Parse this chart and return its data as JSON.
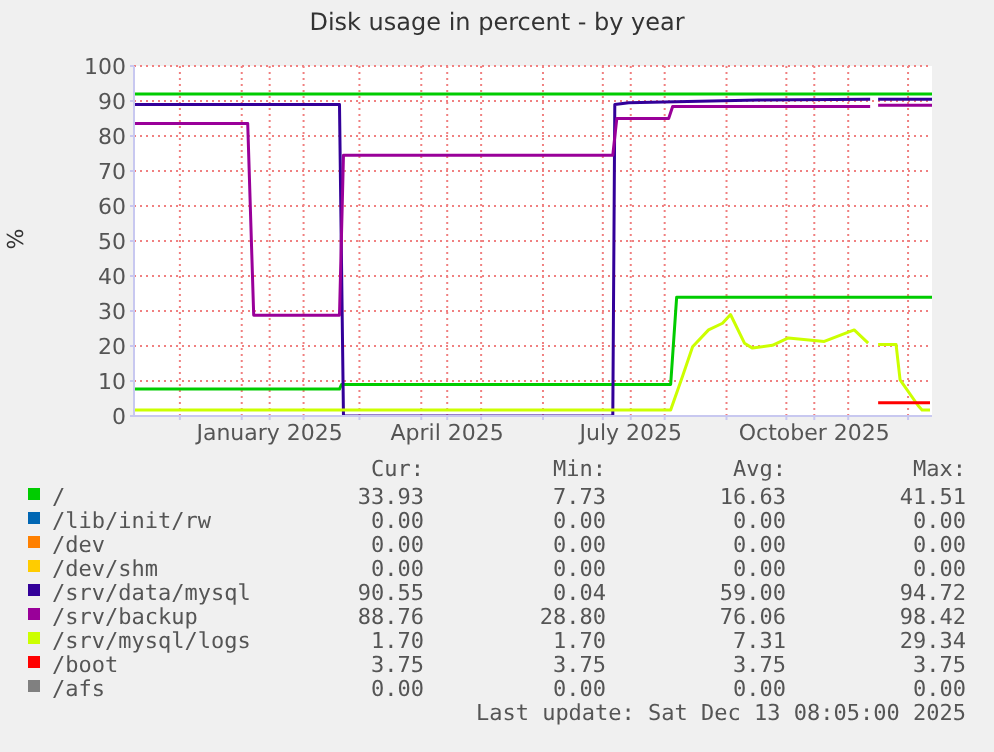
{
  "chart_data": {
    "type": "line",
    "title": "Disk usage in percent - by year",
    "ylabel": "%",
    "xlim": [
      "2024-11-08",
      "2025-12-13"
    ],
    "xticks": [
      {
        "value": "2024-12-01",
        "label": null
      },
      {
        "value": "2025-01-01",
        "label": null
      },
      {
        "value": "2025-01-15",
        "label": "January 2025"
      },
      {
        "value": "2025-02-01",
        "label": null
      },
      {
        "value": "2025-03-01",
        "label": null
      },
      {
        "value": "2025-04-01",
        "label": null
      },
      {
        "value": "2025-04-14",
        "label": "April 2025"
      },
      {
        "value": "2025-05-01",
        "label": null
      },
      {
        "value": "2025-06-01",
        "label": null
      },
      {
        "value": "2025-07-01",
        "label": null
      },
      {
        "value": "2025-07-15",
        "label": "July 2025"
      },
      {
        "value": "2025-08-01",
        "label": null
      },
      {
        "value": "2025-09-01",
        "label": null
      },
      {
        "value": "2025-10-01",
        "label": null
      },
      {
        "value": "2025-10-15",
        "label": "October 2025"
      },
      {
        "value": "2025-11-01",
        "label": null
      },
      {
        "value": "2025-12-01",
        "label": null
      }
    ],
    "ylim": [
      0,
      100
    ],
    "yticks": [
      0,
      10,
      20,
      30,
      40,
      50,
      60,
      70,
      80,
      90,
      100
    ],
    "grid": true,
    "legend": "bottom",
    "ref_lines": [
      {
        "axis": "y",
        "value": 92,
        "color": "#00cc00"
      }
    ],
    "series": [
      {
        "name": "/",
        "color": "#00cc00",
        "x": [
          "2024-11-08",
          "2025-02-19",
          "2025-02-20",
          "2025-08-04",
          "2025-08-07",
          "2025-12-13"
        ],
        "values": [
          7.7,
          7.7,
          9,
          9,
          33.9,
          33.9
        ]
      },
      {
        "name": "/lib/init/rw",
        "color": "#0066b3"
      },
      {
        "name": "/dev",
        "color": "#ff8000"
      },
      {
        "name": "/dev/shm",
        "color": "#ffcc00"
      },
      {
        "name": "/srv/data/mysql",
        "color": "#330099",
        "x": [
          "2024-11-08",
          "2025-02-19",
          "2025-02-21",
          "2025-07-06",
          "2025-07-07",
          "2025-07-14",
          "2025-09-17",
          "2025-11-12",
          "2025-11-14",
          "2025-11-16",
          "2025-12-13"
        ],
        "values": [
          89,
          89,
          0,
          0,
          89,
          89.5,
          90.3,
          90.5,
          null,
          90.5,
          90.5
        ]
      },
      {
        "name": "/srv/backup",
        "color": "#990099",
        "x": [
          "2024-11-08",
          "2025-01-04",
          "2025-01-07",
          "2025-02-19",
          "2025-02-21",
          "2025-07-06",
          "2025-07-08",
          "2025-08-03",
          "2025-08-05",
          "2025-11-12",
          "2025-11-14",
          "2025-11-16",
          "2025-12-13"
        ],
        "values": [
          83.6,
          83.6,
          28.8,
          28.8,
          74.5,
          74.5,
          85,
          85,
          88.4,
          88.4,
          null,
          88.8,
          88.8
        ]
      },
      {
        "name": "/srv/mysql/logs",
        "color": "#ccff00",
        "x": [
          "2024-11-08",
          "2025-08-04",
          "2025-08-10",
          "2025-08-15",
          "2025-08-23",
          "2025-08-30",
          "2025-09-03",
          "2025-09-10",
          "2025-09-14",
          "2025-09-24",
          "2025-10-02",
          "2025-10-20",
          "2025-11-04",
          "2025-11-11",
          "2025-11-13",
          "2025-11-16",
          "2025-11-25",
          "2025-11-27",
          "2025-12-06",
          "2025-12-08",
          "2025-12-12"
        ],
        "values": [
          1.7,
          1.7,
          11.4,
          19.8,
          24.6,
          26.5,
          29,
          20.8,
          19.4,
          20.2,
          22.3,
          21.3,
          24.6,
          20.8,
          null,
          20.4,
          20.4,
          10.3,
          3,
          1.7,
          1.7
        ]
      },
      {
        "name": "/boot",
        "color": "#ff0000",
        "x": [
          "2025-11-16",
          "2025-12-12"
        ],
        "values": [
          3.8,
          3.8
        ]
      },
      {
        "name": "/afs",
        "color": "#808080"
      }
    ],
    "annotations": [
      "Cur:",
      "Min:",
      "Avg:",
      "Max:",
      "33.93",
      "7.73",
      "16.63",
      "41.51",
      "0.00",
      "0.00",
      "0.00",
      "0.00",
      "0.00",
      "0.00",
      "0.00",
      "0.00",
      "0.00",
      "0.00",
      "0.00",
      "0.00",
      "90.55",
      "0.04",
      "59.00",
      "94.72",
      "88.76",
      "28.80",
      "76.06",
      "98.42",
      "1.70",
      "1.70",
      "7.31",
      "29.34",
      "3.75",
      "3.75",
      "3.75",
      "3.75",
      "0.00",
      "0.00",
      "0.00",
      "0.00",
      "Last update: Sat Dec 13 08:05:00 2025"
    ]
  }
}
